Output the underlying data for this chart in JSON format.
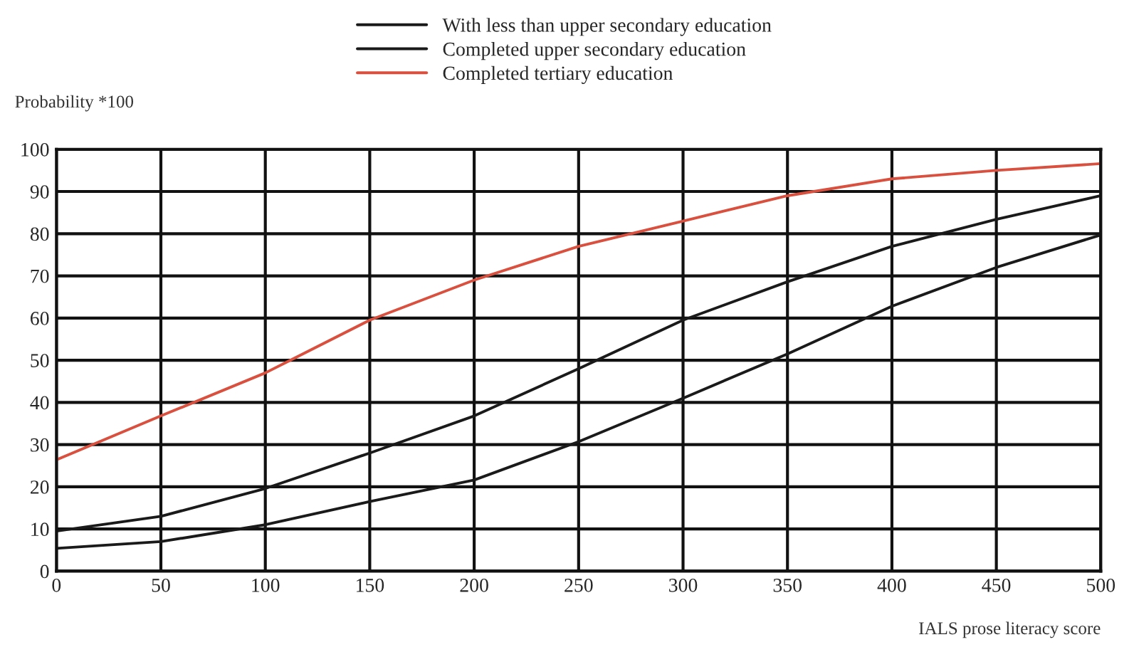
{
  "chart_data": {
    "type": "line",
    "xlabel": "IALS prose literacy score",
    "ylabel": "Probability *100",
    "x": [
      0,
      50,
      100,
      150,
      200,
      250,
      300,
      350,
      400,
      450,
      500
    ],
    "series": [
      {
        "name": "With less than upper secondary education",
        "color": "#1a1a1a",
        "values": [
          5.4,
          7,
          11,
          16.5,
          21.6,
          30.7,
          41,
          51.5,
          62.8,
          72,
          79.7
        ]
      },
      {
        "name": "Completed upper secondary education",
        "color": "#1a1a1a",
        "values": [
          9.5,
          13,
          19.6,
          28,
          36.8,
          48,
          59.5,
          68.6,
          77,
          83.4,
          89
        ]
      },
      {
        "name": "Completed tertiary education",
        "color": "#d9503f",
        "values": [
          26.4,
          36.8,
          47,
          59.5,
          69,
          77,
          83,
          89,
          93,
          95,
          96.6
        ]
      }
    ],
    "xlim": [
      0,
      500
    ],
    "xticks": [
      0,
      50,
      100,
      150,
      200,
      250,
      300,
      350,
      400,
      450,
      500
    ],
    "ylim": [
      0,
      100
    ],
    "yticks": [
      0,
      10,
      20,
      30,
      40,
      50,
      60,
      70,
      80,
      90,
      100
    ],
    "grid": true,
    "legend": "top",
    "marker": "none",
    "line_style": "solid"
  }
}
